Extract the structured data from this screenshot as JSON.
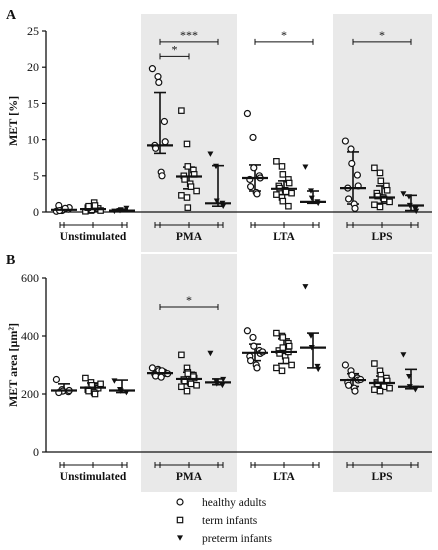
{
  "figure": {
    "groups": [
      "Unstimulated",
      "PMA",
      "LTA",
      "LPS"
    ],
    "shaded_groups": [
      "PMA",
      "LPS"
    ],
    "legend": [
      {
        "name": "healthy adults",
        "marker": "circle"
      },
      {
        "name": "term infants",
        "marker": "square"
      },
      {
        "name": "preterm infants",
        "marker": "triangle-down"
      }
    ]
  },
  "chart_data": [
    {
      "panel": "A",
      "type": "scatter",
      "ylabel": "MET [%]",
      "ylim": [
        0,
        25
      ],
      "yticks": [
        0,
        5,
        10,
        15,
        20,
        25
      ],
      "legend_position": "bottom",
      "series": [
        {
          "name": "healthy adults",
          "Unstimulated": {
            "points": [
              0.1,
              0.2,
              0.3,
              0.4,
              0.6,
              0.9,
              0.2,
              0.5
            ],
            "median": 0.3,
            "iqr": [
              0.1,
              0.6
            ]
          },
          "PMA": {
            "points": [
              19.8,
              18.7,
              17.9,
              12.5,
              9.7,
              9.2,
              8.8,
              5.5,
              5.0
            ],
            "median": 9.2,
            "iqr": [
              8.1,
              16.5
            ]
          },
          "LTA": {
            "points": [
              13.6,
              10.3,
              6.1,
              5.0,
              4.7,
              4.5,
              3.5,
              2.7,
              2.5
            ],
            "median": 4.7,
            "iqr": [
              2.9,
              6.5
            ]
          },
          "LPS": {
            "points": [
              9.8,
              8.7,
              6.7,
              5.1,
              3.6,
              3.3,
              1.8,
              1.1,
              0.5
            ],
            "median": 3.3,
            "iqr": [
              1.1,
              8.3
            ]
          }
        },
        {
          "name": "term infants",
          "Unstimulated": {
            "points": [
              0.1,
              0.2,
              0.3,
              0.4,
              0.5,
              0.6,
              0.8,
              1.3,
              0.9,
              0.2
            ],
            "median": 0.4,
            "iqr": [
              0.1,
              0.8
            ]
          },
          "PMA": {
            "points": [
              14.0,
              9.4,
              6.3,
              5.8,
              5.2,
              5.0,
              4.5,
              3.9,
              3.5,
              2.9,
              2.3,
              2.0,
              0.6
            ],
            "median": 4.9,
            "iqr": [
              3.2,
              6.2
            ]
          },
          "LTA": {
            "points": [
              7.0,
              6.3,
              5.2,
              4.5,
              4.0,
              3.6,
              3.3,
              3.0,
              2.8,
              2.6,
              2.4,
              2.0,
              1.5,
              0.8
            ],
            "median": 3.2,
            "iqr": [
              2.4,
              4.3
            ]
          },
          "LPS": {
            "points": [
              6.1,
              5.4,
              4.3,
              3.6,
              3.0,
              2.6,
              2.2,
              2.0,
              1.8,
              1.4,
              1.0,
              0.7
            ],
            "median": 2.0,
            "iqr": [
              1.2,
              3.6
            ]
          }
        },
        {
          "name": "preterm infants",
          "Unstimulated": {
            "points": [
              0.1,
              0.2,
              0.3,
              0.5
            ],
            "median": 0.2,
            "iqr": [
              0.1,
              0.4
            ]
          },
          "PMA": {
            "points": [
              8.0,
              6.3,
              1.5,
              1.2,
              0.8
            ],
            "median": 1.2,
            "iqr": [
              0.8,
              6.4
            ]
          },
          "LTA": {
            "points": [
              6.2,
              2.9,
              1.9,
              1.4,
              1.2
            ],
            "median": 1.4,
            "iqr": [
              1.2,
              2.9
            ]
          },
          "LPS": {
            "points": [
              2.5,
              2.1,
              0.9,
              0.4,
              0.1
            ],
            "median": 0.9,
            "iqr": [
              0.2,
              2.3
            ]
          }
        }
      ],
      "annotations": [
        {
          "group": "PMA",
          "from": "healthy adults",
          "to": "term infants",
          "label": "*",
          "y": 21.5
        },
        {
          "group": "PMA",
          "from": "healthy adults",
          "to": "preterm infants",
          "label": "***",
          "y": 23.5
        },
        {
          "group": "LTA",
          "from": "healthy adults",
          "to": "preterm infants",
          "label": "*",
          "y": 23.5
        },
        {
          "group": "LPS",
          "from": "healthy adults",
          "to": "preterm infants",
          "label": "*",
          "y": 23.5
        }
      ]
    },
    {
      "panel": "B",
      "type": "scatter",
      "ylabel": "MET area [µm²]",
      "ylim": [
        0,
        600
      ],
      "yticks": [
        0,
        200,
        400,
        600
      ],
      "series": [
        {
          "name": "healthy adults",
          "Unstimulated": {
            "points": [
              250,
              215,
              210,
              208,
              212,
              205
            ],
            "median": 212,
            "iqr": [
              208,
              235
            ]
          },
          "PMA": {
            "points": [
              290,
              285,
              280,
              275,
              272,
              268,
              262,
              258,
              280,
              270
            ],
            "median": 272,
            "iqr": [
              262,
              283
            ]
          },
          "LTA": {
            "points": [
              418,
              395,
              365,
              350,
              340,
              330,
              315,
              300,
              290,
              345
            ],
            "median": 342,
            "iqr": [
              315,
              372
            ]
          },
          "LPS": {
            "points": [
              300,
              280,
              265,
              255,
              248,
              240,
              230,
              220,
              210,
              250
            ],
            "median": 248,
            "iqr": [
              226,
              270
            ]
          }
        },
        {
          "name": "term infants",
          "Unstimulated": {
            "points": [
              255,
              240,
              230,
              225,
              220,
              215,
              210,
              205,
              200,
              235
            ],
            "median": 222,
            "iqr": [
              210,
              238
            ]
          },
          "PMA": {
            "points": [
              335,
              290,
              275,
              265,
              255,
              250,
              245,
              240,
              235,
              230,
              225,
              210,
              270,
              260
            ],
            "median": 252,
            "iqr": [
              235,
              275
            ]
          },
          "LTA": {
            "points": [
              410,
              400,
              395,
              375,
              365,
              350,
              340,
              330,
              315,
              300,
              290,
              280,
              360,
              345
            ],
            "median": 345,
            "iqr": [
              305,
              390
            ]
          },
          "LPS": {
            "points": [
              305,
              280,
              265,
              255,
              245,
              240,
              235,
              230,
              225,
              220,
              215,
              210,
              250
            ],
            "median": 238,
            "iqr": [
              222,
              262
            ]
          }
        },
        {
          "name": "preterm infants",
          "Unstimulated": {
            "points": [
              245,
              215,
              210,
              205
            ],
            "median": 212,
            "iqr": [
              205,
              248
            ]
          },
          "PMA": {
            "points": [
              340,
              245,
              235,
              230,
              250
            ],
            "median": 240,
            "iqr": [
              232,
              252
            ]
          },
          "LTA": {
            "points": [
              570,
              400,
              360,
              295,
              285
            ],
            "median": 360,
            "iqr": [
              290,
              410
            ]
          },
          "LPS": {
            "points": [
              335,
              260,
              225,
              215,
              220
            ],
            "median": 225,
            "iqr": [
              218,
              285
            ]
          }
        }
      ],
      "annotations": [
        {
          "group": "PMA",
          "from": "healthy adults",
          "to": "preterm infants",
          "label": "*",
          "y": 500
        }
      ]
    }
  ]
}
